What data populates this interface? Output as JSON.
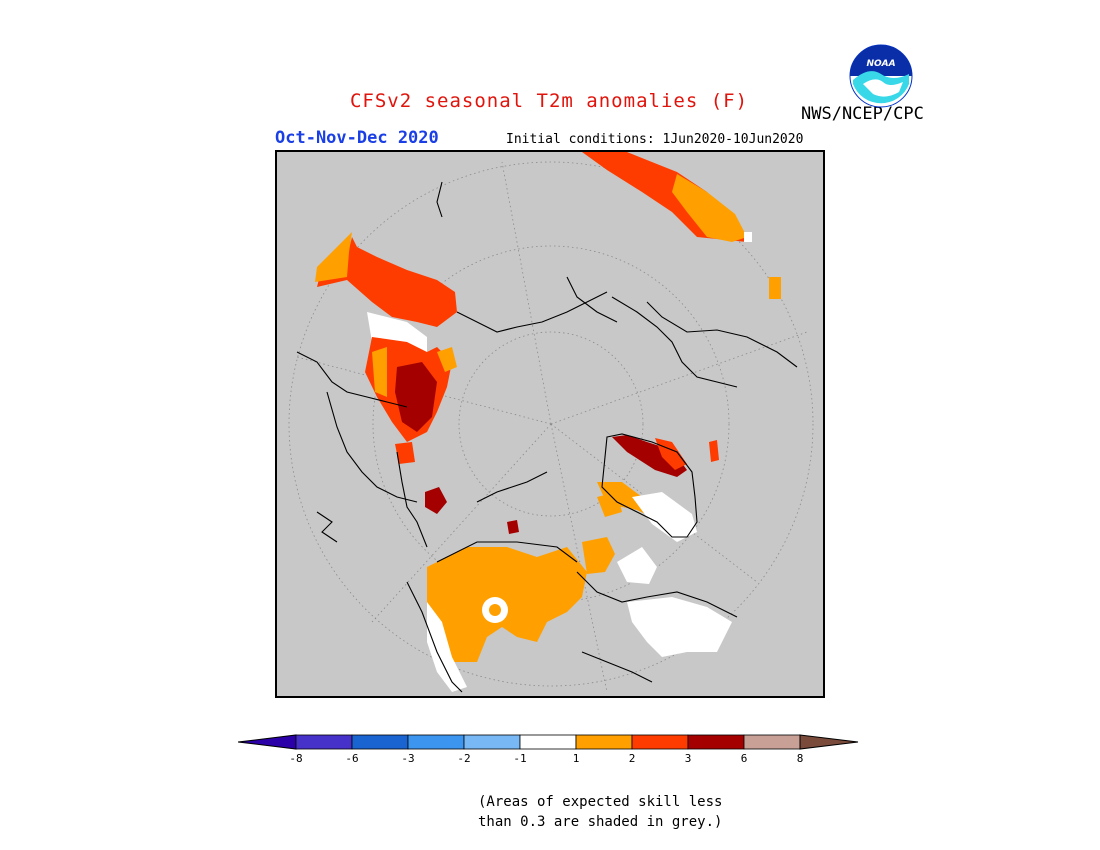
{
  "header": {
    "title": "CFSv2 seasonal T2m anomalies (F)",
    "season": "Oct-Nov-Dec 2020",
    "initial_conditions": "Initial conditions: 1Jun2020-10Jun2020",
    "agency": "NWS/NCEP/CPC",
    "logo_text": "NOAA"
  },
  "colorbar": {
    "ticks": [
      "-8",
      "-6",
      "-3",
      "-2",
      "-1",
      "1",
      "2",
      "3",
      "6",
      "8"
    ],
    "colors": [
      "#2b00a8",
      "#4632c8",
      "#1a64d2",
      "#3c96f0",
      "#78b9f5",
      "#ffffff",
      "#ffa000",
      "#ff3c00",
      "#a50000",
      "#c8a096",
      "#7a4a3a"
    ]
  },
  "note": {
    "line1": "(Areas of expected skill less",
    "line2": "than 0.3 are shaded in grey.)"
  },
  "map": {
    "background_color": "#c8c8c8",
    "projection": "polar stereographic (north pole)"
  }
}
